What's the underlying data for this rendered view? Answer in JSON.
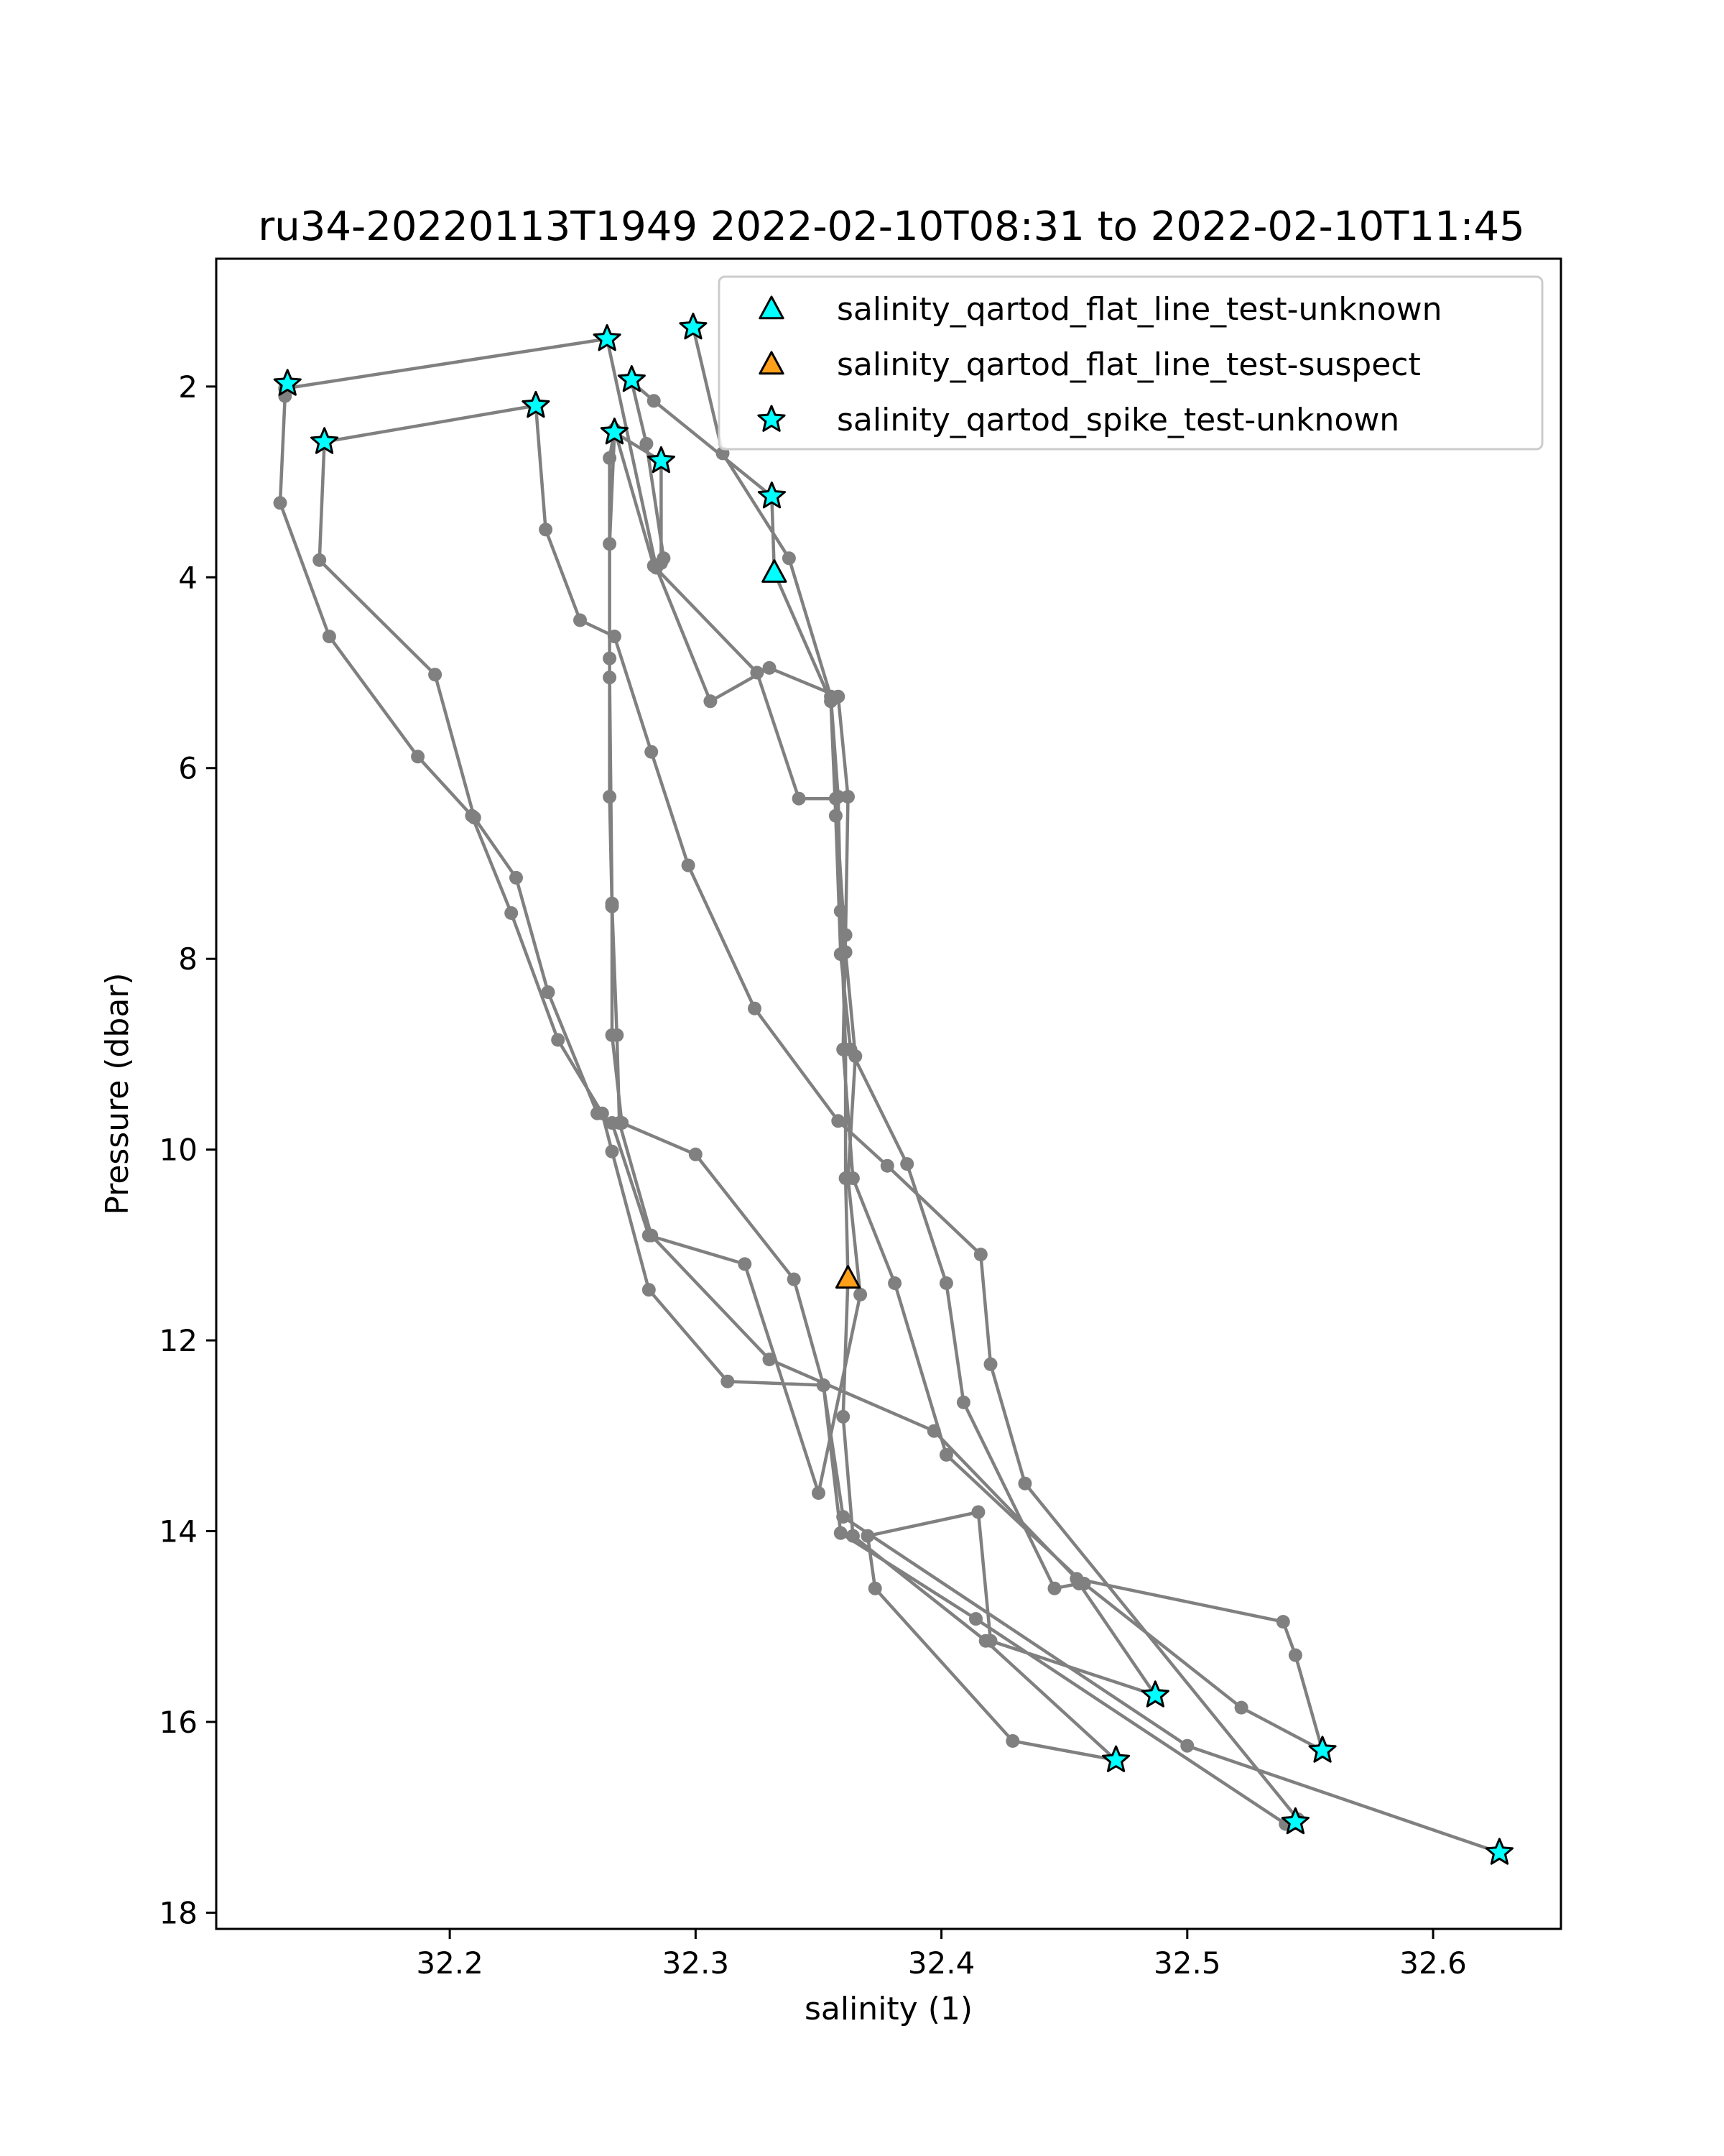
{
  "chart_data": {
    "type": "scatter",
    "title": "ru34-20220113T1949 2022-02-10T08:31 to 2022-02-10T11:45",
    "xlabel": "salinity (1)",
    "ylabel": "Pressure (dbar)",
    "xlim": [
      32.105,
      32.652
    ],
    "ylim": [
      18.17,
      0.66
    ],
    "y_inverted": true,
    "grid": false,
    "legend_position": "upper right",
    "x_ticks": [
      "32.2",
      "32.3",
      "32.4",
      "32.5",
      "32.6"
    ],
    "y_ticks": [
      "2",
      "4",
      "6",
      "8",
      "10",
      "12",
      "14",
      "16",
      "18"
    ],
    "profile_line_color": "#808080",
    "profile_points": [
      [
        32.299,
        1.38
      ],
      [
        32.311,
        2.7
      ],
      [
        32.338,
        3.8
      ],
      [
        32.355,
        5.25
      ],
      [
        32.358,
        6.3
      ],
      [
        32.359,
        7.5
      ],
      [
        32.361,
        8.95
      ],
      [
        32.361,
        10.3
      ],
      [
        32.362,
        11.35
      ],
      [
        32.36,
        12.8
      ],
      [
        32.364,
        14.05
      ],
      [
        32.418,
        15.15
      ],
      [
        32.471,
        16.4
      ],
      [
        32.429,
        16.2
      ],
      [
        32.373,
        14.6
      ],
      [
        32.37,
        14.05
      ],
      [
        32.415,
        13.8
      ],
      [
        32.42,
        15.15
      ],
      [
        32.487,
        15.72
      ],
      [
        32.456,
        14.55
      ],
      [
        32.446,
        14.6
      ],
      [
        32.409,
        12.65
      ],
      [
        32.402,
        11.4
      ],
      [
        32.386,
        10.15
      ],
      [
        32.363,
        8.95
      ],
      [
        32.359,
        7.95
      ],
      [
        32.357,
        6.5
      ],
      [
        32.355,
        5.3
      ],
      [
        32.332,
        3.95
      ],
      [
        32.331,
        3.15
      ],
      [
        32.283,
        2.15
      ],
      [
        32.274,
        1.95
      ],
      [
        32.28,
        2.6
      ],
      [
        32.287,
        3.8
      ],
      [
        32.286,
        3.85
      ],
      [
        32.286,
        2.78
      ],
      [
        32.267,
        2.48
      ],
      [
        32.265,
        3.65
      ],
      [
        32.265,
        4.85
      ],
      [
        32.265,
        6.3
      ],
      [
        32.266,
        7.45
      ],
      [
        32.268,
        8.8
      ],
      [
        32.269,
        9.72
      ],
      [
        32.282,
        10.9
      ],
      [
        32.33,
        12.2
      ],
      [
        32.397,
        12.95
      ],
      [
        32.455,
        14.5
      ],
      [
        32.539,
        14.95
      ],
      [
        32.544,
        15.3
      ],
      [
        32.555,
        16.3
      ],
      [
        32.522,
        15.85
      ],
      [
        32.458,
        14.55
      ],
      [
        32.402,
        13.2
      ],
      [
        32.381,
        11.4
      ],
      [
        32.364,
        10.3
      ],
      [
        32.36,
        8.95
      ],
      [
        32.361,
        7.75
      ],
      [
        32.362,
        6.3
      ],
      [
        32.358,
        5.25
      ],
      [
        32.33,
        4.95
      ],
      [
        32.306,
        5.3
      ],
      [
        32.284,
        3.9
      ],
      [
        32.264,
        1.5
      ],
      [
        32.133,
        2.02
      ],
      [
        32.133,
        2.1
      ],
      [
        32.131,
        3.22
      ],
      [
        32.151,
        4.62
      ],
      [
        32.187,
        5.88
      ],
      [
        32.209,
        6.5
      ],
      [
        32.225,
        7.52
      ],
      [
        32.244,
        8.85
      ],
      [
        32.262,
        9.62
      ],
      [
        32.266,
        10.02
      ],
      [
        32.281,
        11.47
      ],
      [
        32.313,
        12.43
      ],
      [
        32.352,
        12.47
      ],
      [
        32.359,
        14.02
      ],
      [
        32.414,
        14.92
      ],
      [
        32.54,
        17.07
      ],
      [
        32.545,
        17.02
      ],
      [
        32.434,
        13.5
      ],
      [
        32.42,
        12.25
      ],
      [
        32.416,
        11.1
      ],
      [
        32.378,
        10.17
      ],
      [
        32.358,
        9.7
      ],
      [
        32.324,
        8.52
      ],
      [
        32.297,
        7.02
      ],
      [
        32.282,
        5.83
      ],
      [
        32.267,
        4.62
      ],
      [
        32.253,
        4.45
      ],
      [
        32.239,
        3.5
      ],
      [
        32.235,
        2.2
      ],
      [
        32.149,
        2.58
      ],
      [
        32.147,
        3.82
      ],
      [
        32.194,
        5.02
      ],
      [
        32.21,
        6.52
      ],
      [
        32.227,
        7.15
      ],
      [
        32.24,
        8.35
      ],
      [
        32.26,
        9.62
      ],
      [
        32.266,
        9.72
      ],
      [
        32.281,
        10.9
      ],
      [
        32.32,
        11.2
      ],
      [
        32.35,
        13.6
      ],
      [
        32.367,
        11.52
      ],
      [
        32.362,
        10.3
      ],
      [
        32.365,
        9.02
      ],
      [
        32.361,
        7.93
      ],
      [
        32.357,
        6.32
      ],
      [
        32.342,
        6.32
      ],
      [
        32.325,
        5.0
      ],
      [
        32.283,
        3.88
      ],
      [
        32.267,
        2.45
      ],
      [
        32.265,
        2.75
      ],
      [
        32.265,
        5.05
      ],
      [
        32.266,
        7.42
      ],
      [
        32.266,
        8.8
      ],
      [
        32.27,
        9.72
      ],
      [
        32.3,
        10.05
      ],
      [
        32.34,
        11.36
      ],
      [
        32.352,
        12.47
      ],
      [
        32.36,
        13.85
      ],
      [
        32.5,
        16.25
      ],
      [
        32.627,
        17.37
      ]
    ],
    "series": [
      {
        "name": "salinity_qartod_flat_line_test-unknown",
        "marker": "triangle",
        "color": "#00ffff",
        "points": [
          [
            32.332,
            3.95
          ]
        ]
      },
      {
        "name": "salinity_qartod_flat_line_test-suspect",
        "marker": "triangle",
        "color": "#ff9f1a",
        "points": [
          [
            32.362,
            11.35
          ]
        ]
      },
      {
        "name": "salinity_qartod_spike_test-unknown",
        "marker": "star",
        "color": "#00ffff",
        "points": [
          [
            32.264,
            1.5
          ],
          [
            32.299,
            1.38
          ],
          [
            32.134,
            1.97
          ],
          [
            32.274,
            1.93
          ],
          [
            32.235,
            2.2
          ],
          [
            32.149,
            2.58
          ],
          [
            32.267,
            2.48
          ],
          [
            32.286,
            2.78
          ],
          [
            32.331,
            3.15
          ],
          [
            32.487,
            15.72
          ],
          [
            32.471,
            16.4
          ],
          [
            32.555,
            16.3
          ],
          [
            32.544,
            17.05
          ],
          [
            32.627,
            17.37
          ]
        ]
      }
    ]
  }
}
